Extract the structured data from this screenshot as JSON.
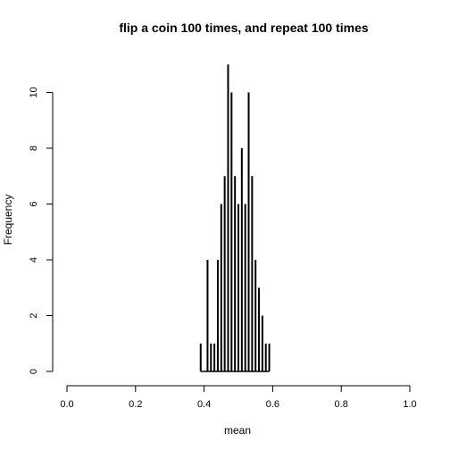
{
  "chart_data": {
    "type": "bar",
    "title": "flip a coin 100 times, and repeat 100 times",
    "xlabel": "mean",
    "ylabel": "Frequency",
    "xlim": [
      0,
      1
    ],
    "ylim": [
      0,
      11
    ],
    "xticks": [
      "0.0",
      "0.2",
      "0.4",
      "0.6",
      "0.8",
      "1.0"
    ],
    "yticks": [
      "0",
      "2",
      "4",
      "6",
      "8",
      "10"
    ],
    "grid": false,
    "legend": "none",
    "color": "#000000",
    "x": [
      0.39,
      0.41,
      0.42,
      0.43,
      0.44,
      0.45,
      0.46,
      0.47,
      0.48,
      0.49,
      0.5,
      0.51,
      0.52,
      0.53,
      0.54,
      0.55,
      0.56,
      0.57,
      0.58,
      0.59
    ],
    "values": [
      1,
      4,
      1,
      1,
      4,
      6,
      7,
      11,
      10,
      7,
      6,
      8,
      6,
      10,
      7,
      4,
      3,
      2,
      1,
      1
    ]
  }
}
